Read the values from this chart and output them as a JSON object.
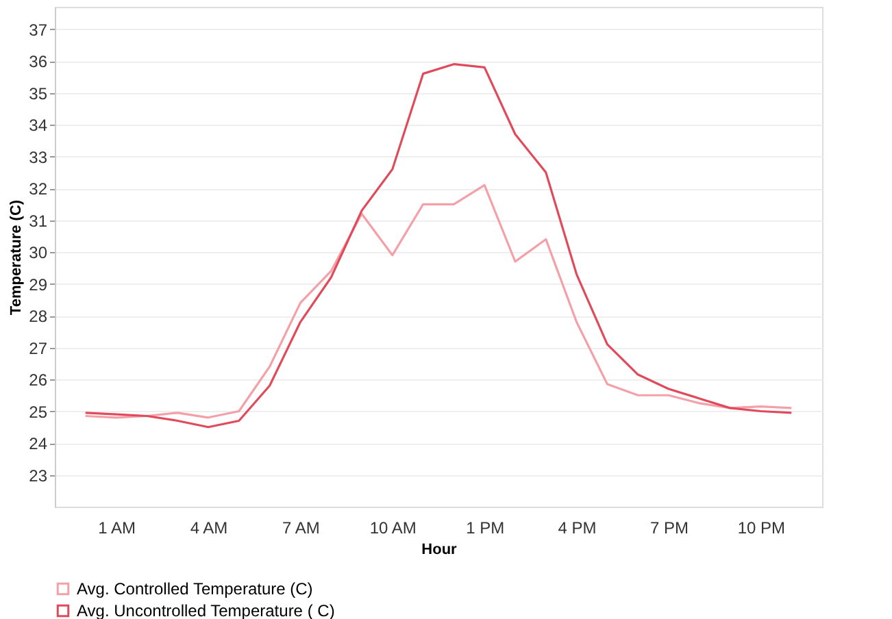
{
  "chart_data": {
    "type": "line",
    "xlabel": "Hour",
    "ylabel": "Temperature (C)",
    "categories": [
      null,
      "1 AM",
      null,
      null,
      "4 AM",
      null,
      null,
      "7 AM",
      null,
      null,
      "10 AM",
      null,
      null,
      "1 PM",
      null,
      null,
      "4 PM",
      null,
      null,
      "7 PM",
      null,
      null,
      "10 PM",
      null
    ],
    "ylim": [
      22,
      37.7
    ],
    "yticks": [
      23,
      24,
      25,
      26,
      27,
      28,
      29,
      30,
      31,
      32,
      33,
      34,
      35,
      36,
      37
    ],
    "grid": "y",
    "legend": "bottom left",
    "marker": "none",
    "line_style": "solid",
    "series": [
      {
        "name": "Avg. Controlled Temperature (C)",
        "color": "#f4a0a8",
        "values": [
          24.85,
          24.8,
          24.85,
          24.95,
          24.8,
          25.0,
          26.4,
          28.4,
          29.4,
          31.2,
          29.9,
          31.5,
          31.5,
          32.1,
          29.7,
          30.4,
          27.8,
          25.85,
          25.5,
          25.5,
          25.25,
          25.1,
          25.15,
          25.1
        ]
      },
      {
        "name": "Avg. Uncontrolled Temperature  ( C)",
        "color": "#e04a5a",
        "values": [
          24.95,
          24.9,
          24.85,
          24.7,
          24.5,
          24.7,
          25.8,
          27.8,
          29.2,
          31.3,
          32.6,
          35.6,
          35.9,
          35.8,
          33.7,
          32.5,
          29.3,
          27.1,
          26.15,
          25.7,
          25.4,
          25.1,
          25.0,
          24.95
        ]
      }
    ]
  }
}
